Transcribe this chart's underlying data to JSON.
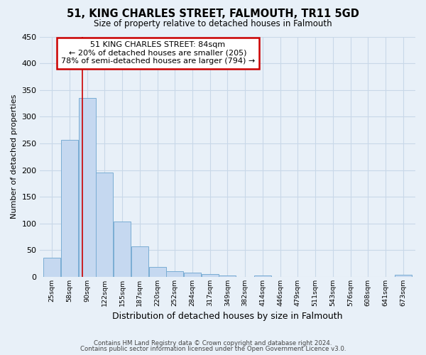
{
  "title": "51, KING CHARLES STREET, FALMOUTH, TR11 5GD",
  "subtitle": "Size of property relative to detached houses in Falmouth",
  "xlabel": "Distribution of detached houses by size in Falmouth",
  "ylabel": "Number of detached properties",
  "bar_labels": [
    "25sqm",
    "58sqm",
    "90sqm",
    "122sqm",
    "155sqm",
    "187sqm",
    "220sqm",
    "252sqm",
    "284sqm",
    "317sqm",
    "349sqm",
    "382sqm",
    "414sqm",
    "446sqm",
    "479sqm",
    "511sqm",
    "543sqm",
    "576sqm",
    "608sqm",
    "641sqm",
    "673sqm"
  ],
  "bar_values": [
    36,
    257,
    335,
    196,
    104,
    57,
    19,
    10,
    8,
    5,
    3,
    0,
    3,
    0,
    0,
    0,
    0,
    0,
    0,
    0,
    4
  ],
  "bar_color": "#c5d8f0",
  "bar_edge_color": "#7aadd4",
  "grid_color": "#c8d8e8",
  "bg_color": "#e8f0f8",
  "vline_x": 1.72,
  "vline_color": "#cc0000",
  "annotation_line1": "51 KING CHARLES STREET: 84sqm",
  "annotation_line2": "← 20% of detached houses are smaller (205)",
  "annotation_line3": "78% of semi-detached houses are larger (794) →",
  "annotation_box_color": "#ffffff",
  "annotation_box_edge": "#cc0000",
  "ylim": [
    0,
    450
  ],
  "yticks": [
    0,
    50,
    100,
    150,
    200,
    250,
    300,
    350,
    400,
    450
  ],
  "footer1": "Contains HM Land Registry data © Crown copyright and database right 2024.",
  "footer2": "Contains public sector information licensed under the Open Government Licence v3.0."
}
